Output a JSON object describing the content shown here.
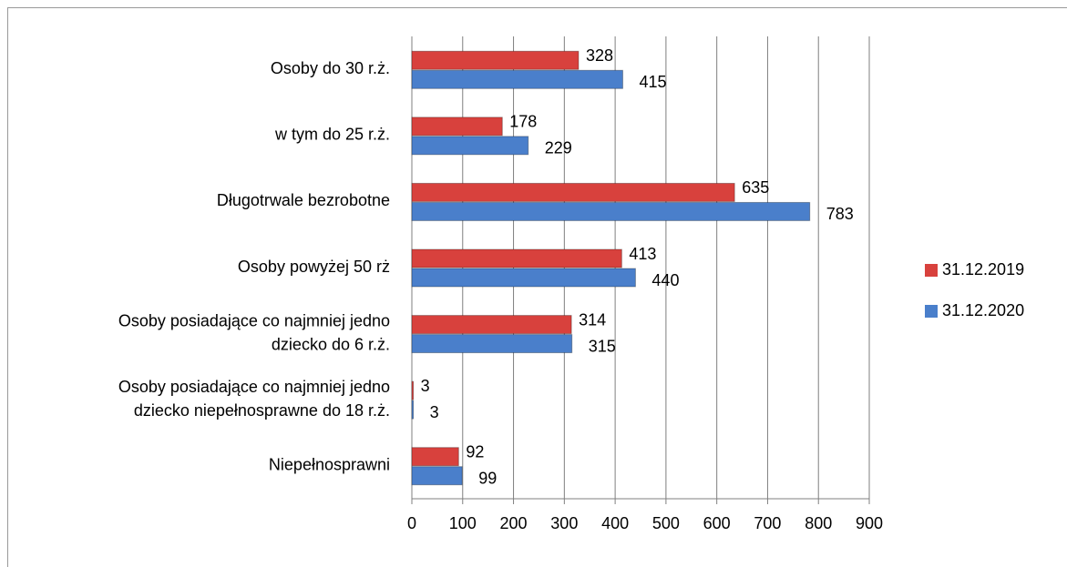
{
  "chart_data": {
    "type": "barh",
    "categories": [
      "Osoby do 30 r.ż.",
      "w tym do 25 r.ż.",
      "Długotrwale bezrobotne",
      "Osoby powyżej 50 rż",
      "Osoby posiadające co najmniej jedno\ndziecko do 6 r.ż.",
      "Osoby posiadające co najmniej jedno\ndziecko niepełnosprawne do 18 r.ż.",
      "Niepełnosprawni"
    ],
    "series": [
      {
        "name": "31.12.2019",
        "color": "#d8413d",
        "values": [
          328,
          178,
          635,
          413,
          314,
          3,
          92
        ]
      },
      {
        "name": "31.12.2020",
        "color": "#4a7fcb",
        "values": [
          415,
          229,
          783,
          440,
          315,
          3,
          99
        ]
      }
    ],
    "xlim": [
      0,
      900
    ],
    "xticks": [
      0,
      100,
      200,
      300,
      400,
      500,
      600,
      700,
      800,
      900
    ],
    "grid": true,
    "legend": "right"
  }
}
